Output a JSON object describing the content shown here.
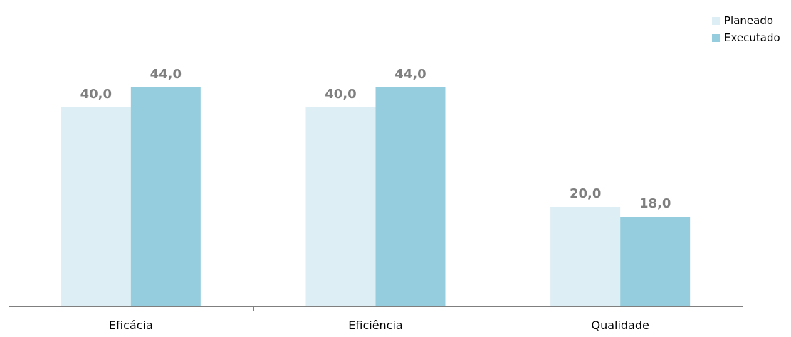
{
  "chart_data": {
    "type": "bar",
    "categories": [
      "Eficácia",
      "Eficiência",
      "Qualidade"
    ],
    "series": [
      {
        "name": "Planeado",
        "values": [
          40.0,
          40.0,
          20.0
        ],
        "labels": [
          "40,0",
          "40,0",
          "20,0"
        ],
        "color": "#DDEEF4"
      },
      {
        "name": "Executado",
        "values": [
          44.0,
          44.0,
          18.0
        ],
        "labels": [
          "44,0",
          "44,0",
          "18,0"
        ],
        "color": "#95CDDE"
      }
    ],
    "ylim": [
      0,
      52
    ],
    "grid": false,
    "legend_position": "top-right",
    "axis_color": "#7F7F7F",
    "data_label_color": "#7F7F7F"
  }
}
